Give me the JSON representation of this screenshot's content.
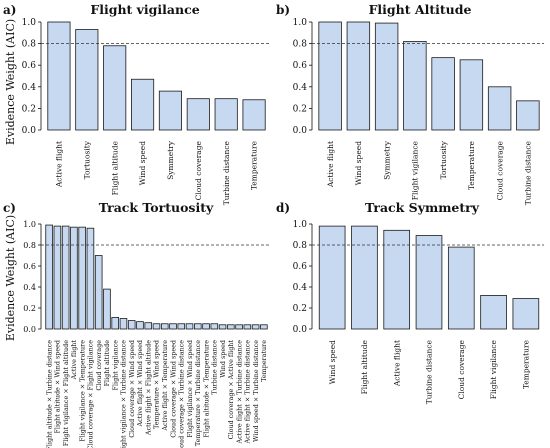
{
  "chart_data": [
    {
      "panel_label": "a)",
      "title": "Flight vigilance",
      "type": "bar",
      "ylabel": "Evidence Weight (AIC)",
      "ylim": [
        0,
        1.0
      ],
      "yticks": [
        "0.0",
        "0.2",
        "0.4",
        "0.6",
        "0.8",
        "1.0"
      ],
      "threshold": 0.8,
      "categories": [
        "Active flight",
        "Tortuosity",
        "Flight altitude",
        "Wind speed",
        "Symmetry",
        "Cloud coverage",
        "Turbine distance",
        "Temperature"
      ],
      "values": [
        1.0,
        0.93,
        0.78,
        0.47,
        0.36,
        0.29,
        0.29,
        0.28
      ]
    },
    {
      "panel_label": "b)",
      "title": "Flight Altitude",
      "type": "bar",
      "ylabel": "",
      "ylim": [
        0,
        1.0
      ],
      "yticks": [
        "0.0",
        "0.2",
        "0.4",
        "0.6",
        "0.8",
        "1.0"
      ],
      "threshold": 0.8,
      "categories": [
        "Active flight",
        "Wind speed",
        "Symmetry",
        "Flight vigilance",
        "Tortuosity",
        "Temperature",
        "Cloud coverage",
        "Turbine distance"
      ],
      "values": [
        1.0,
        1.0,
        0.99,
        0.82,
        0.67,
        0.65,
        0.4,
        0.27
      ]
    },
    {
      "panel_label": "c)",
      "title": "Track Tortuosity",
      "type": "bar",
      "ylabel": "Evidence Weight (AIC)",
      "ylim": [
        0,
        1.0
      ],
      "yticks": [
        "0.0",
        "0.2",
        "0.4",
        "0.6",
        "0.8",
        "1.0"
      ],
      "threshold": 0.8,
      "categories": [
        "Flight altitude × Turbine distance",
        "Flight altitude × Wind speed",
        "Flight vigilance × Flight altitude",
        "Active flight",
        "Flight vigilance × Temperature",
        "Cloud coverage × Flight vigilance",
        "Cloud coverage",
        "Flight altitude",
        "Flight vigilance",
        "Flight vigilance × Turbine distance",
        "Cloud coverage × Wind speed",
        "Active flight × Wind speed",
        "Active flight × Flight altitude",
        "Temperature × Wind speed",
        "Active flight × Temperature",
        "Cloud coverage × Wind speed",
        "Cloud coverage × Turbine distance",
        "Flight vigilance × Wind speed",
        "Temperature × Turbine distance",
        "Flight altitude × Temperature",
        "Turbine distance",
        "Wind speed",
        "Cloud coverage × Active flight",
        "Active flight × Turbine distance",
        "Active flight × Turbine distance",
        "Wind speed × Turbine distance",
        "Temperature"
      ],
      "values": [
        0.99,
        0.98,
        0.98,
        0.97,
        0.97,
        0.96,
        0.7,
        0.38,
        0.11,
        0.1,
        0.08,
        0.07,
        0.06,
        0.05,
        0.05,
        0.05,
        0.05,
        0.05,
        0.05,
        0.05,
        0.05,
        0.04,
        0.04,
        0.04,
        0.04,
        0.04,
        0.04
      ]
    },
    {
      "panel_label": "d)",
      "title": "Track Symmetry",
      "type": "bar",
      "ylabel": "",
      "ylim": [
        0,
        1.0
      ],
      "yticks": [
        "0.0",
        "0.2",
        "0.4",
        "0.6",
        "0.8",
        "1.0"
      ],
      "threshold": 0.8,
      "categories": [
        "Wind speed",
        "Flight altitude",
        "Active flight",
        "Turbine distance",
        "Cloud coverage",
        "Flight vigilance",
        "Temperature"
      ],
      "values": [
        0.98,
        0.98,
        0.94,
        0.89,
        0.78,
        0.32,
        0.29
      ]
    }
  ],
  "colors": {
    "bar_fill": "#c6d9f0",
    "bar_stroke": "#1a1a1a",
    "axis": "#111111",
    "threshold_line": "#333333"
  }
}
